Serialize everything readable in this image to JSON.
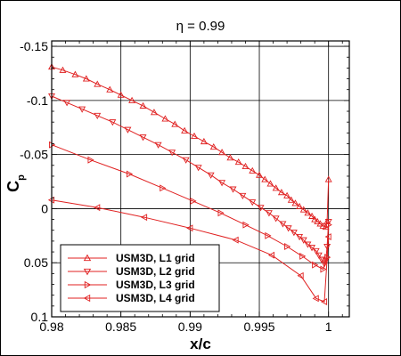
{
  "chart_data": {
    "type": "line",
    "title": "η = 0.99",
    "xlabel": "x/c",
    "ylabel": "C",
    "ylabel_sub": "p",
    "xlim": [
      0.98,
      1.0015
    ],
    "ylim": [
      0.1,
      -0.155
    ],
    "y_reversed": true,
    "grid": true,
    "legend_position": "bottom-left",
    "x_ticks": [
      0.98,
      0.985,
      0.99,
      0.995,
      1
    ],
    "x_tick_labels": [
      "0.98",
      "0.985",
      "0.99",
      "0.995",
      "1"
    ],
    "y_ticks": [
      -0.15,
      -0.1,
      -0.05,
      0,
      0.05,
      0.1
    ],
    "y_tick_labels": [
      "-0.15",
      "-0.1",
      "-0.05",
      "0",
      "0.05",
      "0.1"
    ],
    "series_color": "#e02020",
    "series": [
      {
        "name": "USM3D, L1 grid",
        "marker": "triangle-up",
        "x": [
          0.98,
          0.9808,
          0.9817,
          0.9825,
          0.9833,
          0.9842,
          0.985,
          0.9858,
          0.9866,
          0.9874,
          0.9882,
          0.9889,
          0.9896,
          0.9903,
          0.991,
          0.9917,
          0.9923,
          0.9929,
          0.9935,
          0.994,
          0.9945,
          0.995,
          0.9954,
          0.9958,
          0.9962,
          0.9966,
          0.997,
          0.9973,
          0.9976,
          0.9979,
          0.9982,
          0.9985,
          0.9988,
          0.999,
          0.9992,
          0.9994,
          0.9996,
          0.9998,
          0.9999,
          1.0
        ],
        "y": [
          -0.131,
          -0.128,
          -0.124,
          -0.12,
          -0.115,
          -0.11,
          -0.105,
          -0.1,
          -0.095,
          -0.089,
          -0.083,
          -0.078,
          -0.072,
          -0.067,
          -0.062,
          -0.057,
          -0.052,
          -0.047,
          -0.043,
          -0.039,
          -0.035,
          -0.031,
          -0.027,
          -0.023,
          -0.019,
          -0.015,
          -0.012,
          -0.008,
          -0.005,
          -0.002,
          0.001,
          0.004,
          0.007,
          0.01,
          0.012,
          0.014,
          0.016,
          0.017,
          0.012,
          -0.027
        ]
      },
      {
        "name": "USM3D, L2 grid",
        "marker": "triangle-down",
        "x": [
          0.98,
          0.9811,
          0.9822,
          0.9833,
          0.9844,
          0.9855,
          0.9866,
          0.9877,
          0.9887,
          0.9897,
          0.9906,
          0.9915,
          0.9923,
          0.9931,
          0.9938,
          0.9945,
          0.9951,
          0.9957,
          0.9962,
          0.9967,
          0.9971,
          0.9975,
          0.9979,
          0.9982,
          0.9985,
          0.9988,
          0.9991,
          0.9993,
          0.9995,
          0.9997,
          0.9998,
          0.9999,
          1.0
        ],
        "y": [
          -0.104,
          -0.098,
          -0.092,
          -0.086,
          -0.08,
          -0.073,
          -0.066,
          -0.059,
          -0.052,
          -0.045,
          -0.038,
          -0.031,
          -0.024,
          -0.018,
          -0.012,
          -0.006,
          -0.001,
          0.004,
          0.009,
          0.014,
          0.018,
          0.022,
          0.026,
          0.029,
          0.033,
          0.036,
          0.039,
          0.043,
          0.047,
          0.051,
          0.048,
          0.035,
          0.012
        ]
      },
      {
        "name": "USM3D, L3 grid",
        "marker": "triangle-right",
        "x": [
          0.98,
          0.9828,
          0.9856,
          0.988,
          0.9902,
          0.9922,
          0.994,
          0.9956,
          0.997,
          0.9981,
          0.999,
          0.9996,
          0.9999,
          1.0
        ],
        "y": [
          -0.059,
          -0.045,
          -0.032,
          -0.019,
          -0.007,
          0.004,
          0.015,
          0.025,
          0.035,
          0.044,
          0.052,
          0.056,
          0.045,
          0.015
        ]
      },
      {
        "name": "USM3D, L4 grid",
        "marker": "triangle-left",
        "x": [
          0.98,
          0.9833,
          0.9867,
          0.99,
          0.9933,
          0.9959,
          0.998,
          0.9991,
          0.9997,
          1.0
        ],
        "y": [
          -0.008,
          -0.001,
          0.008,
          0.018,
          0.029,
          0.043,
          0.062,
          0.083,
          0.086,
          0.026
        ]
      }
    ]
  }
}
